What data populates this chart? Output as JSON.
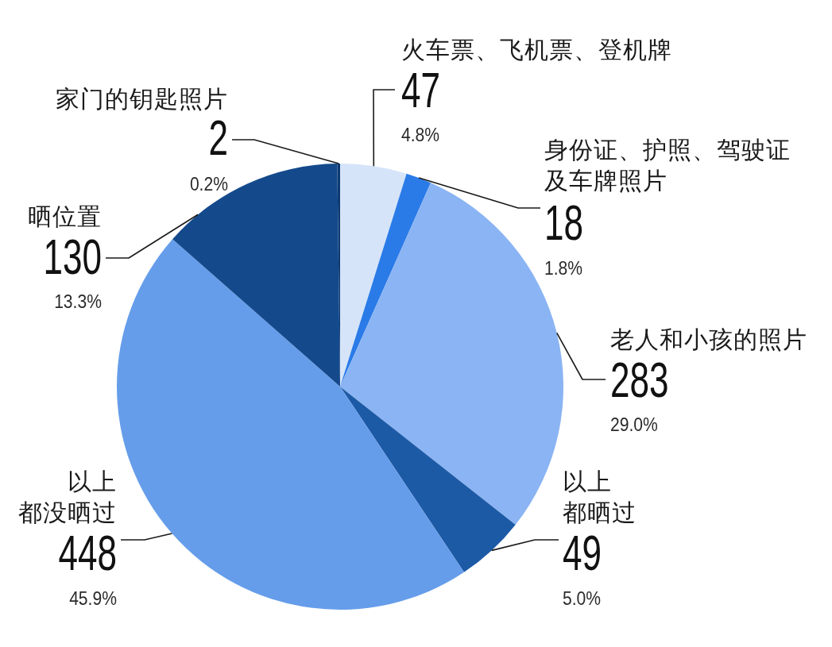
{
  "chart_data": {
    "type": "pie",
    "categories": [
      "火车票、飞机票、登机牌",
      "身份证、护照、驾驶证及车牌照片",
      "老人和小孩的照片",
      "以上都晒过",
      "以上都没晒过",
      "晒位置",
      "家门的钥匙照片"
    ],
    "values": [
      47,
      18,
      283,
      49,
      448,
      130,
      2
    ],
    "colors": [
      "#d6e4f9",
      "#2a7be8",
      "#8ab4f3",
      "#1d5aa6",
      "#659dea",
      "#144a8c",
      "#0d3a73"
    ],
    "data_labels": true,
    "annotations": [
      {
        "text": "4.8%",
        "x": "火车票、飞机票、登机牌"
      },
      {
        "text": "1.8%",
        "x": "身份证、护照、驾驶证及车牌照片"
      },
      {
        "text": "29.0%",
        "x": "老人和小孩的照片"
      },
      {
        "text": "5.0%",
        "x": "以上都晒过"
      },
      {
        "text": "45.9%",
        "x": "以上都没晒过"
      },
      {
        "text": "13.3%",
        "x": "晒位置"
      },
      {
        "text": "0.2%",
        "x": "家门的钥匙照片"
      }
    ]
  }
}
